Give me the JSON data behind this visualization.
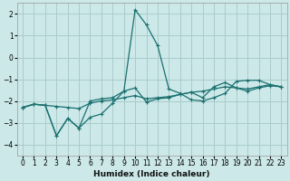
{
  "xlabel": "Humidex (Indice chaleur)",
  "background_color": "#cce8e8",
  "grid_color": "#aacccc",
  "line_color": "#1a7070",
  "xlim": [
    -0.5,
    23.5
  ],
  "ylim": [
    -4.5,
    2.5
  ],
  "yticks": [
    -4,
    -3,
    -2,
    -1,
    0,
    1,
    2
  ],
  "xticks": [
    0,
    1,
    2,
    3,
    4,
    5,
    6,
    7,
    8,
    9,
    10,
    11,
    12,
    13,
    14,
    15,
    16,
    17,
    18,
    19,
    20,
    21,
    22,
    23
  ],
  "line1_x": [
    0,
    1,
    2,
    3,
    4,
    5,
    6,
    7,
    8,
    9,
    10,
    11,
    12,
    13,
    14,
    15,
    16,
    17,
    18,
    19,
    20,
    21,
    22,
    23
  ],
  "line1_y": [
    -2.3,
    -2.15,
    -2.2,
    -2.25,
    -2.3,
    -2.35,
    -2.1,
    -2.0,
    -1.95,
    -1.85,
    -1.75,
    -1.9,
    -1.85,
    -1.8,
    -1.7,
    -1.6,
    -1.55,
    -1.45,
    -1.35,
    -1.4,
    -1.45,
    -1.35,
    -1.25,
    -1.35
  ],
  "line2_x": [
    0,
    1,
    2,
    3,
    4,
    5,
    6,
    7,
    8,
    9,
    10,
    11,
    12,
    13,
    14,
    15,
    16,
    17,
    18,
    19,
    20,
    21,
    22,
    23
  ],
  "line2_y": [
    -2.3,
    -2.15,
    -2.2,
    -3.6,
    -2.8,
    -3.25,
    -2.75,
    -2.6,
    -2.1,
    -1.55,
    2.2,
    1.5,
    0.55,
    -1.45,
    -1.65,
    -1.95,
    -2.0,
    -1.85,
    -1.65,
    -1.1,
    -1.05,
    -1.05,
    -1.25,
    -1.35
  ],
  "line3_x": [
    0,
    1,
    2,
    3,
    4,
    5,
    6,
    7,
    8,
    9,
    10,
    11,
    12,
    13,
    14,
    15,
    16,
    17,
    18,
    19,
    20,
    21,
    22,
    23
  ],
  "line3_y": [
    -2.3,
    -2.15,
    -2.2,
    -3.6,
    -2.8,
    -3.25,
    -2.0,
    -1.9,
    -1.85,
    -1.55,
    -1.4,
    -2.05,
    -1.9,
    -1.85,
    -1.7,
    -1.6,
    -1.85,
    -1.35,
    -1.15,
    -1.4,
    -1.55,
    -1.4,
    -1.3,
    -1.35
  ]
}
